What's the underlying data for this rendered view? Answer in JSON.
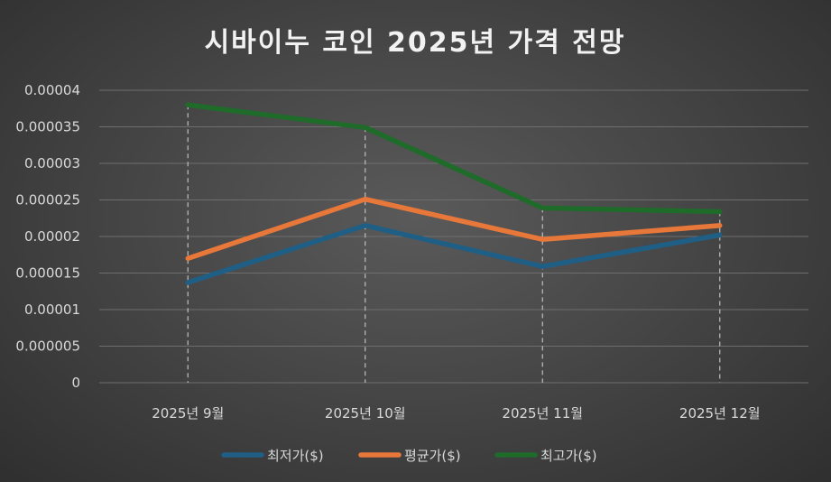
{
  "chart_data": {
    "type": "line",
    "title": "시바이누 코인 2025년 가격 전망",
    "categories": [
      "2025년 9월",
      "2025년 10월",
      "2025년 11월",
      "2025년 12월"
    ],
    "ylim": [
      0,
      4e-05
    ],
    "y_ticks": [
      {
        "value": 0,
        "label": "0"
      },
      {
        "value": 5e-06,
        "label": "0.000005"
      },
      {
        "value": 1e-05,
        "label": "0.00001"
      },
      {
        "value": 1.5e-05,
        "label": "0.000015"
      },
      {
        "value": 2e-05,
        "label": "0.00002"
      },
      {
        "value": 2.5e-05,
        "label": "0.000025"
      },
      {
        "value": 3e-05,
        "label": "0.00003"
      },
      {
        "value": 3.5e-05,
        "label": "0.000035"
      },
      {
        "value": 4e-05,
        "label": "0.00004"
      }
    ],
    "grid": true,
    "legend": "bottom",
    "series": [
      {
        "name": "최저가($)",
        "color": "#1f5f86",
        "values": [
          1.37e-05,
          2.15e-05,
          1.59e-05,
          2.02e-05
        ]
      },
      {
        "name": "평균가($)",
        "color": "#e8773a",
        "values": [
          1.7e-05,
          2.51e-05,
          1.96e-05,
          2.15e-05
        ]
      },
      {
        "name": "최고가($)",
        "color": "#1e6b2a",
        "values": [
          3.8e-05,
          3.49e-05,
          2.39e-05,
          2.34e-05
        ]
      }
    ]
  }
}
